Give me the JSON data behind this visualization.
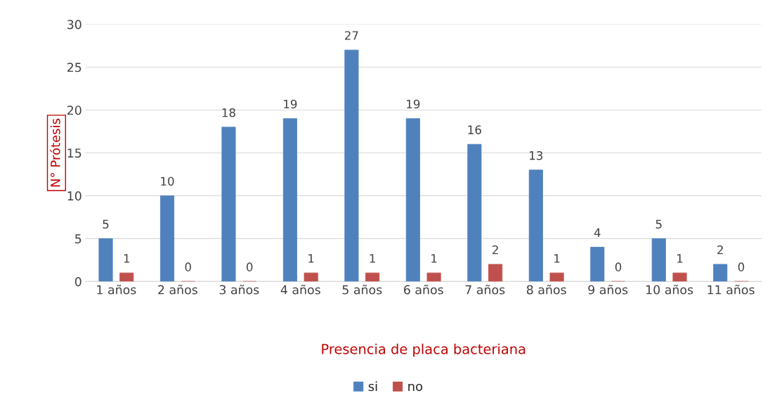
{
  "chart_data": {
    "type": "bar",
    "categories": [
      "1 años",
      "2 años",
      "3 años",
      "4 años",
      "5 años",
      "6 años",
      "7 años",
      "8 años",
      "9 años",
      "10 años",
      "11 años"
    ],
    "series": [
      {
        "name": "si",
        "color": "#4f81bd",
        "values": [
          5,
          10,
          18,
          19,
          27,
          19,
          16,
          13,
          4,
          5,
          2
        ]
      },
      {
        "name": "no",
        "color": "#c0504d",
        "values": [
          1,
          0,
          0,
          1,
          1,
          1,
          2,
          1,
          0,
          1,
          0
        ]
      }
    ],
    "ylabel": "N° Prótesis",
    "xlabel": "Presencia de placa bacteriana",
    "ylim": [
      0,
      30
    ],
    "yticks": [
      0,
      5,
      10,
      15,
      20,
      25,
      30
    ],
    "grid": "y",
    "legend": "bottom",
    "data_labels": true
  }
}
